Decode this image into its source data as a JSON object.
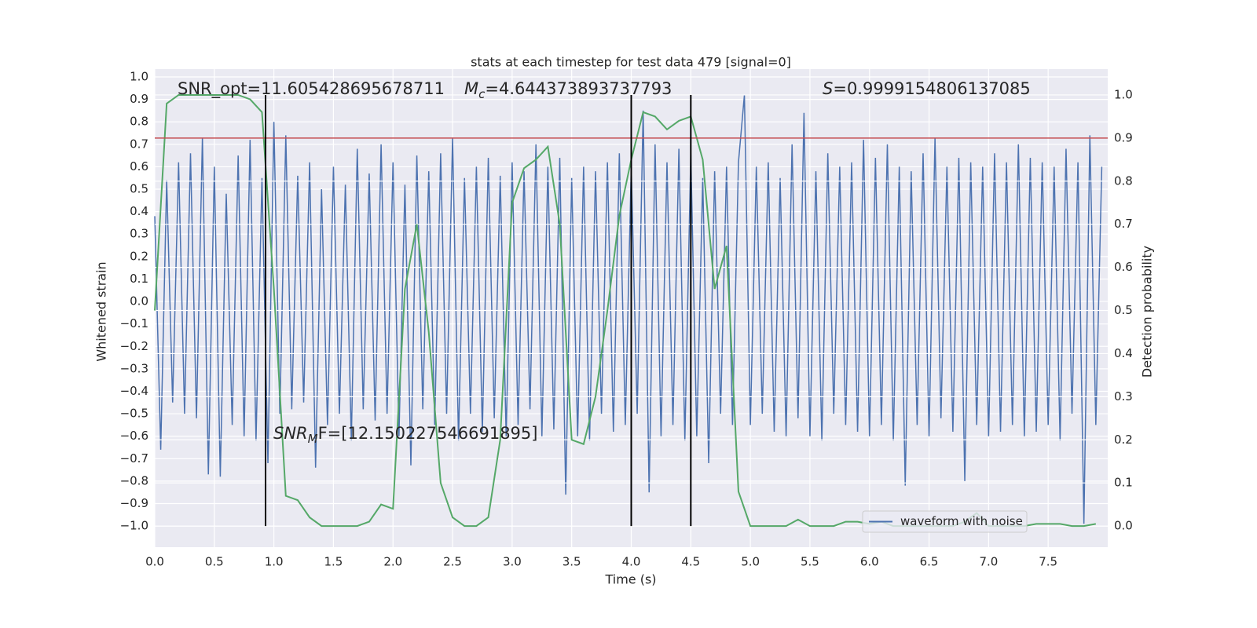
{
  "chart_data": {
    "type": "line",
    "title": "stats at each timestep for test data 479 [signal=0]",
    "x_label": "Time (s)",
    "y_label": "Whitened strain",
    "y2_label": "Detection probability",
    "xlim": [
      0,
      8.0
    ],
    "ylim": [
      -1.094,
      1.035
    ],
    "y2lim": [
      -0.049,
      1.06
    ],
    "xticks": [
      {
        "value": 0,
        "label": "0.0"
      },
      0.5,
      {
        "value": 1,
        "label": "1.0"
      },
      1.5,
      {
        "value": 2,
        "label": "2.0"
      },
      2.5,
      {
        "value": 3,
        "label": "3.0"
      },
      3.5,
      {
        "value": 4,
        "label": "4.0"
      },
      4.5,
      {
        "value": 5,
        "label": "5.0"
      },
      5.5,
      {
        "value": 6,
        "label": "6.0"
      },
      6.5,
      {
        "value": 7,
        "label": "7.0"
      },
      7.5
    ],
    "yticks": [
      {
        "value": -1,
        "label": "−1.0"
      },
      {
        "value": -0.9,
        "label": "−0.9"
      },
      {
        "value": -0.8,
        "label": "−0.8"
      },
      {
        "value": -0.7,
        "label": "−0.7"
      },
      {
        "value": -0.6,
        "label": "−0.6"
      },
      {
        "value": -0.5,
        "label": "−0.5"
      },
      {
        "value": -0.4,
        "label": "−0.4"
      },
      {
        "value": -0.3,
        "label": "−0.3"
      },
      {
        "value": -0.2,
        "label": "−0.2"
      },
      {
        "value": -0.1,
        "label": "−0.1"
      },
      {
        "value": 0,
        "label": "0.0"
      },
      0.1,
      0.2,
      0.3,
      0.4,
      0.5,
      0.6,
      0.7,
      0.8,
      0.9,
      {
        "value": 1,
        "label": "1.0"
      }
    ],
    "y2ticks": [
      {
        "value": 0,
        "label": "0.0"
      },
      0.1,
      0.2,
      0.3,
      0.4,
      0.5,
      0.6,
      0.7,
      0.8,
      0.9,
      {
        "value": 1,
        "label": "1.0"
      }
    ],
    "grid": true,
    "legend": "lower right",
    "series": [
      {
        "name": "waveform with noise",
        "color": "#4c72b0",
        "axis": "y",
        "x": [
          0,
          0.05,
          0.1,
          0.15,
          0.2,
          0.25,
          0.3,
          0.35,
          0.4,
          0.45,
          0.5,
          0.55,
          0.6,
          0.65,
          0.7,
          0.75,
          0.8,
          0.85,
          0.9,
          0.95,
          1,
          1.05,
          1.1,
          1.15,
          1.2,
          1.25,
          1.3,
          1.35,
          1.4,
          1.45,
          1.5,
          1.55,
          1.6,
          1.65,
          1.7,
          1.75,
          1.8,
          1.85,
          1.9,
          1.95,
          2,
          2.05,
          2.1,
          2.15,
          2.2,
          2.25,
          2.3,
          2.35,
          2.4,
          2.45,
          2.5,
          2.55,
          2.6,
          2.65,
          2.7,
          2.75,
          2.8,
          2.85,
          2.9,
          2.95,
          3,
          3.05,
          3.1,
          3.15,
          3.2,
          3.25,
          3.3,
          3.35,
          3.4,
          3.45,
          3.5,
          3.55,
          3.6,
          3.65,
          3.7,
          3.75,
          3.8,
          3.85,
          3.9,
          3.95,
          4,
          4.05,
          4.1,
          4.15,
          4.2,
          4.25,
          4.3,
          4.35,
          4.4,
          4.45,
          4.5,
          4.55,
          4.6,
          4.65,
          4.7,
          4.75,
          4.8,
          4.85,
          4.9,
          4.95,
          5,
          5.05,
          5.1,
          5.15,
          5.2,
          5.25,
          5.3,
          5.35,
          5.4,
          5.45,
          5.5,
          5.55,
          5.6,
          5.65,
          5.7,
          5.75,
          5.8,
          5.85,
          5.9,
          5.95,
          6,
          6.05,
          6.1,
          6.15,
          6.2,
          6.25,
          6.3,
          6.35,
          6.4,
          6.45,
          6.5,
          6.55,
          6.6,
          6.65,
          6.7,
          6.75,
          6.8,
          6.85,
          6.9,
          6.95,
          7,
          7.05,
          7.1,
          7.15,
          7.2,
          7.25,
          7.3,
          7.35,
          7.4,
          7.45,
          7.5,
          7.55,
          7.6,
          7.65,
          7.7,
          7.75,
          7.8,
          7.85,
          7.9,
          7.95
        ],
        "values": [
          0.38,
          -0.66,
          0.54,
          -0.45,
          0.62,
          -0.5,
          0.66,
          -0.52,
          0.73,
          -0.77,
          0.6,
          -0.78,
          0.48,
          -0.55,
          0.65,
          -0.6,
          0.72,
          -0.62,
          0.55,
          -0.72,
          0.8,
          -0.5,
          0.74,
          -0.48,
          0.56,
          -0.45,
          0.62,
          -0.74,
          0.5,
          -0.55,
          0.6,
          -0.5,
          0.52,
          -0.62,
          0.68,
          -0.48,
          0.57,
          -0.53,
          0.7,
          -0.5,
          0.62,
          -0.6,
          0.52,
          -0.73,
          0.65,
          -0.48,
          0.58,
          -0.55,
          0.66,
          -0.5,
          0.73,
          -0.62,
          0.55,
          -0.5,
          0.6,
          -0.58,
          0.64,
          -0.52,
          0.56,
          -0.6,
          0.62,
          -0.55,
          0.58,
          -0.48,
          0.7,
          -0.6,
          0.6,
          -0.57,
          0.64,
          -0.86,
          0.55,
          -0.6,
          0.6,
          -0.62,
          0.58,
          -0.5,
          0.62,
          -0.58,
          0.66,
          -0.55,
          0.6,
          -0.5,
          0.85,
          -0.85,
          0.7,
          -0.6,
          0.62,
          -0.55,
          0.68,
          -0.62,
          0.66,
          -0.6,
          0.55,
          -0.72,
          0.58,
          -0.5,
          0.6,
          -0.55,
          0.62,
          0.92,
          -0.55,
          0.6,
          -0.5,
          0.62,
          -0.58,
          0.55,
          -0.6,
          0.7,
          -0.52,
          0.84,
          -0.6,
          0.58,
          -0.62,
          0.66,
          -0.5,
          0.6,
          -0.55,
          0.62,
          -0.58,
          0.72,
          -0.6,
          0.64,
          -0.55,
          0.7,
          -0.62,
          0.6,
          -0.82,
          0.58,
          -0.55,
          0.66,
          -0.6,
          0.73,
          -0.52,
          0.6,
          -0.58,
          0.64,
          -0.8,
          0.62,
          -0.55,
          0.6,
          -0.6,
          0.66,
          -0.58,
          0.62,
          -0.55,
          0.7,
          -0.6,
          0.64,
          -0.58,
          0.62,
          -0.55,
          0.6,
          -0.62,
          0.68,
          -0.5,
          0.62,
          -0.99,
          0.74,
          -0.55,
          0.6
        ]
      },
      {
        "color": "#55a868",
        "axis": "y2",
        "x": [
          0,
          0.1,
          0.2,
          0.3,
          0.4,
          0.5,
          0.6,
          0.7,
          0.8,
          0.9,
          1,
          1.1,
          1.2,
          1.3,
          1.4,
          1.5,
          1.6,
          1.7,
          1.8,
          1.9,
          2,
          2.1,
          2.2,
          2.3,
          2.4,
          2.5,
          2.6,
          2.7,
          2.8,
          2.9,
          3,
          3.1,
          3.2,
          3.3,
          3.4,
          3.5,
          3.6,
          3.7,
          3.8,
          3.9,
          4,
          4.1,
          4.2,
          4.3,
          4.4,
          4.5,
          4.6,
          4.7,
          4.8,
          4.9,
          5,
          5.1,
          5.2,
          5.3,
          5.4,
          5.5,
          5.6,
          5.7,
          5.8,
          5.9,
          6,
          6.1,
          6.2,
          6.3,
          6.4,
          6.5,
          6.6,
          6.7,
          6.8,
          6.9,
          7,
          7.1,
          7.2,
          7.3,
          7.4,
          7.5,
          7.6,
          7.7,
          7.8,
          7.9
        ],
        "values": [
          0.5,
          0.98,
          1,
          1,
          1,
          1,
          1,
          1,
          0.99,
          0.96,
          0.55,
          0.07,
          0.06,
          0.02,
          0,
          0,
          0,
          0,
          0.01,
          0.05,
          0.04,
          0.55,
          0.7,
          0.45,
          0.1,
          0.02,
          0,
          0,
          0.02,
          0.2,
          0.75,
          0.83,
          0.85,
          0.88,
          0.7,
          0.2,
          0.19,
          0.3,
          0.5,
          0.72,
          0.85,
          0.96,
          0.95,
          0.92,
          0.94,
          0.95,
          0.85,
          0.55,
          0.65,
          0.08,
          0,
          0,
          0,
          0,
          0.015,
          0,
          0,
          0,
          0.01,
          0.01,
          0.005,
          0.01,
          0,
          0,
          0,
          0,
          0,
          0,
          0.01,
          0.03,
          0,
          0,
          0,
          0,
          0.005,
          0.005,
          0.005,
          0,
          0,
          0.005
        ]
      }
    ],
    "hline": {
      "y": 0.9,
      "axis": "y2",
      "color": "#c44e52"
    },
    "vlines": {
      "x": [
        0.93,
        4.0,
        4.5
      ],
      "ymin": 0,
      "ymax": 1,
      "axis": "y2",
      "color": "#000000"
    },
    "annotations": [
      {
        "text": "SNR_opt=11.605428695678711"
      },
      {
        "symbol": "M",
        "subscript": "c",
        "text": "=4.644373893737793"
      },
      {
        "symbol": "S",
        "text": "=0.9999154806137085"
      },
      {
        "symbol": "SNR",
        "subscript": "M",
        "text": "F=[12.150227546691895]"
      }
    ]
  }
}
